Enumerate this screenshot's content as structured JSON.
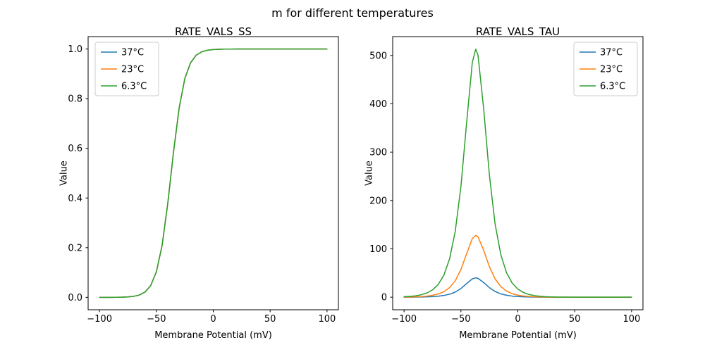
{
  "figure": {
    "suptitle": "m for different temperatures",
    "colors": {
      "blue": "#1f77b4",
      "orange": "#ff7f0e",
      "green": "#2ca02c"
    },
    "legend_labels": [
      "37°C",
      "23°C",
      "6.3°C"
    ]
  },
  "chart_data": [
    {
      "type": "line",
      "title": "RATE_VALS_SS",
      "xlabel": "Membrane Potential (mV)",
      "ylabel": "Value",
      "xlim": [
        -110,
        110
      ],
      "ylim": [
        -0.05,
        1.05
      ],
      "xticks": [
        -100,
        -50,
        0,
        50,
        100
      ],
      "xtick_labels": [
        "−100",
        "−50",
        "0",
        "50",
        "100"
      ],
      "yticks": [
        0,
        0.2,
        0.4,
        0.6,
        0.8,
        1.0
      ],
      "ytick_labels": [
        "0.0",
        "0.2",
        "0.4",
        "0.6",
        "0.8",
        "1.0"
      ],
      "legend_position": "upper left",
      "grid": false,
      "x": [
        -100,
        -95,
        -90,
        -85,
        -80,
        -75,
        -70,
        -65,
        -60,
        -55,
        -50,
        -45,
        -40,
        -35,
        -30,
        -25,
        -20,
        -15,
        -10,
        -5,
        0,
        5,
        10,
        15,
        20,
        25,
        30,
        35,
        40,
        45,
        50,
        55,
        60,
        65,
        70,
        75,
        80,
        85,
        90,
        95,
        100
      ],
      "series": [
        {
          "name": "37°C",
          "color": "#1f77b4",
          "values": [
            0.0,
            0.0001,
            0.0001,
            0.0003,
            0.0008,
            0.0018,
            0.0041,
            0.0094,
            0.0212,
            0.0474,
            0.1028,
            0.2087,
            0.3775,
            0.5826,
            0.7625,
            0.8808,
            0.9444,
            0.9751,
            0.989,
            0.9952,
            0.9979,
            0.9991,
            0.9996,
            0.9998,
            0.9999,
            1,
            1,
            1,
            1,
            1,
            1,
            1,
            1,
            1,
            1,
            1,
            1,
            1,
            1,
            1,
            1
          ]
        },
        {
          "name": "23°C",
          "color": "#ff7f0e",
          "values": [
            0.0,
            0.0001,
            0.0001,
            0.0003,
            0.0008,
            0.0018,
            0.0041,
            0.0094,
            0.0212,
            0.0474,
            0.1028,
            0.2087,
            0.3775,
            0.5826,
            0.7625,
            0.8808,
            0.9444,
            0.9751,
            0.989,
            0.9952,
            0.9979,
            0.9991,
            0.9996,
            0.9998,
            0.9999,
            1,
            1,
            1,
            1,
            1,
            1,
            1,
            1,
            1,
            1,
            1,
            1,
            1,
            1,
            1,
            1
          ]
        },
        {
          "name": "6.3°C",
          "color": "#2ca02c",
          "values": [
            0.0,
            0.0001,
            0.0001,
            0.0003,
            0.0008,
            0.0018,
            0.0041,
            0.0094,
            0.0212,
            0.0474,
            0.1028,
            0.2087,
            0.3775,
            0.5826,
            0.7625,
            0.8808,
            0.9444,
            0.9751,
            0.989,
            0.9952,
            0.9979,
            0.9991,
            0.9996,
            0.9998,
            0.9999,
            1,
            1,
            1,
            1,
            1,
            1,
            1,
            1,
            1,
            1,
            1,
            1,
            1,
            1,
            1,
            1
          ]
        }
      ]
    },
    {
      "type": "line",
      "title": "RATE_VALS_TAU",
      "xlabel": "Membrane Potential (mV)",
      "ylabel": "Value",
      "xlim": [
        -110,
        110
      ],
      "ylim": [
        -26,
        539
      ],
      "xticks": [
        -100,
        -50,
        0,
        50,
        100
      ],
      "xtick_labels": [
        "−100",
        "−50",
        "0",
        "50",
        "100"
      ],
      "yticks": [
        0,
        100,
        200,
        300,
        400,
        500
      ],
      "ytick_labels": [
        "0",
        "100",
        "200",
        "300",
        "400",
        "500"
      ],
      "legend_position": "upper right",
      "grid": false,
      "x": [
        -100,
        -95,
        -90,
        -85,
        -80,
        -75,
        -70,
        -65,
        -60,
        -55,
        -50,
        -45,
        -40,
        -37,
        -35,
        -30,
        -25,
        -20,
        -15,
        -10,
        -5,
        0,
        5,
        10,
        15,
        20,
        25,
        30,
        35,
        40,
        45,
        50,
        55,
        60,
        65,
        70,
        75,
        80,
        85,
        90,
        95,
        100
      ],
      "series": [
        {
          "name": "37°C",
          "color": "#1f77b4",
          "values": [
            0.1,
            0.1,
            0.2,
            0.4,
            0.7,
            1.2,
            2.0,
            3.6,
            6.2,
            10.6,
            17.9,
            28.1,
            37.9,
            40,
            39.0,
            30.3,
            19.7,
            11.8,
            6.9,
            4.0,
            2.3,
            1.3,
            0.8,
            0.4,
            0.2,
            0.1,
            0.1,
            0,
            0,
            0,
            0,
            0,
            0,
            0,
            0,
            0,
            0,
            0,
            0,
            0,
            0,
            0
          ]
        },
        {
          "name": "23°C",
          "color": "#ff7f0e",
          "values": [
            0.2,
            0.4,
            0.7,
            1.2,
            2.2,
            3.8,
            6.5,
            11.4,
            19.8,
            34.0,
            57.2,
            90.0,
            121.2,
            128,
            124.9,
            97.1,
            63.1,
            37.9,
            22.1,
            12.7,
            7.3,
            4.2,
            2.4,
            1.4,
            0.8,
            0.5,
            0.3,
            0.1,
            0.1,
            0,
            0,
            0,
            0,
            0,
            0,
            0,
            0,
            0,
            0,
            0,
            0,
            0
          ]
        },
        {
          "name": "6.3°C",
          "color": "#2ca02c",
          "values": [
            0.9,
            1.6,
            2.8,
            5.0,
            8.6,
            15.1,
            26.2,
            45.6,
            79.2,
            136.4,
            229.3,
            360.8,
            485.8,
            513,
            500.6,
            389.2,
            252.9,
            151.7,
            88.4,
            51.0,
            29.3,
            16.8,
            9.6,
            5.5,
            3.2,
            1.8,
            1.0,
            0.6,
            0.3,
            0.2,
            0.1,
            0.1,
            0,
            0,
            0,
            0,
            0,
            0,
            0,
            0,
            0,
            0
          ]
        }
      ]
    }
  ]
}
